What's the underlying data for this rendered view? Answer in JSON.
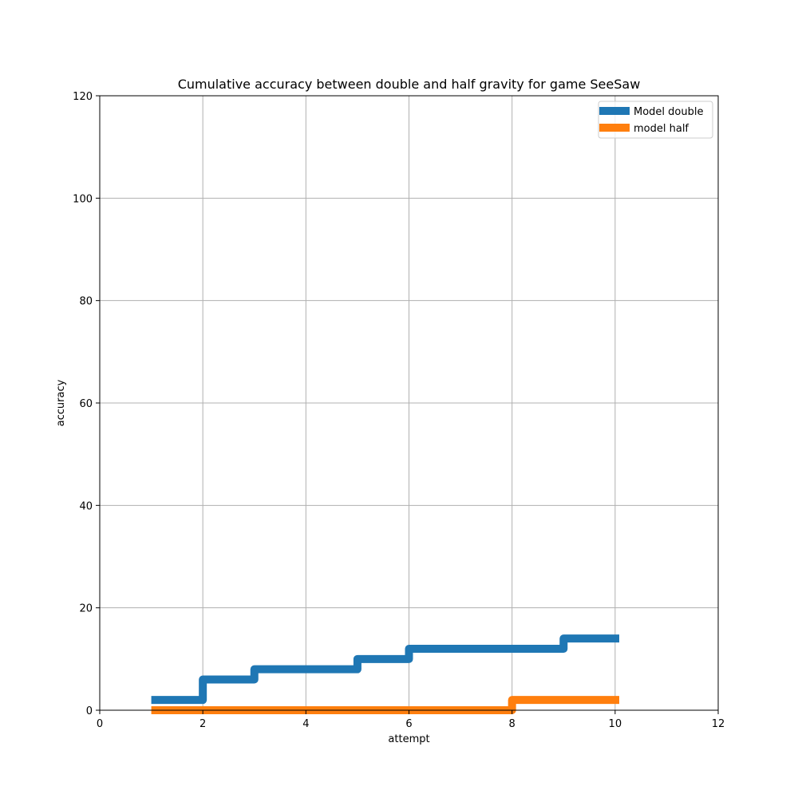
{
  "chart_data": {
    "type": "line",
    "drawstyle": "steps-post",
    "title": "Cumulative accuracy between double and half gravity for game SeeSaw",
    "xlabel": "attempt",
    "ylabel": "accuracy",
    "xlim": [
      0,
      12
    ],
    "ylim": [
      0,
      120
    ],
    "xticks": [
      0,
      2,
      4,
      6,
      8,
      10,
      12
    ],
    "yticks": [
      0,
      20,
      40,
      60,
      80,
      100,
      120
    ],
    "grid": true,
    "legend_position": "top-right",
    "series": [
      {
        "name": "Model double",
        "color": "#1f77b4",
        "x": [
          1,
          2,
          3,
          4,
          5,
          6,
          7,
          8,
          9,
          10
        ],
        "y": [
          2,
          6,
          8,
          8,
          10,
          12,
          12,
          12,
          14,
          14
        ]
      },
      {
        "name": "model half",
        "color": "#ff7f0e",
        "x": [
          1,
          2,
          3,
          4,
          5,
          6,
          7,
          8,
          9,
          10
        ],
        "y": [
          0,
          0,
          0,
          0,
          0,
          0,
          0,
          2,
          2,
          2
        ]
      }
    ]
  }
}
